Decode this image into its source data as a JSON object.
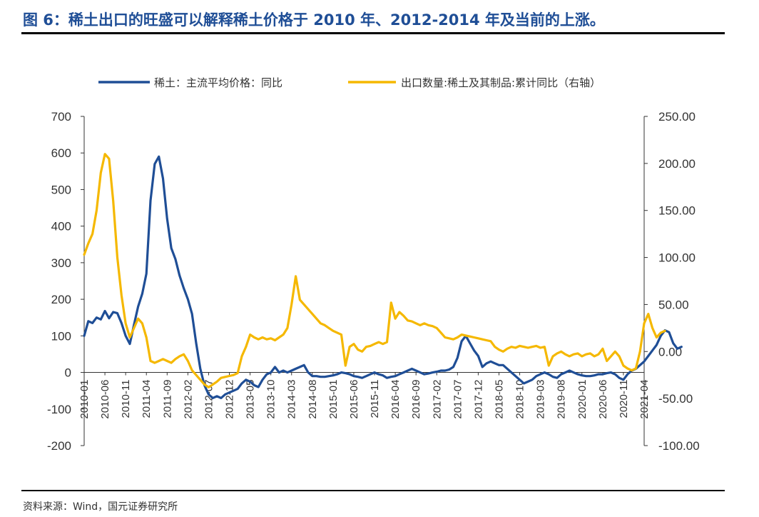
{
  "header": {
    "figure_title": "图 6：稀土出口的旺盛可以解释稀土价格于 2010 年、2012-2014 年及当前的上涨。"
  },
  "footer": {
    "source": "资料来源：Wind，国元证券研究所"
  },
  "chart_data": {
    "type": "line",
    "title": "",
    "legend_position": "top",
    "grid": false,
    "x_labels": [
      "2010-01",
      "2010-06",
      "2010-11",
      "2011-04",
      "2011-09",
      "2012-02",
      "2012-07",
      "2012-12",
      "2013-05",
      "2013-10",
      "2014-03",
      "2014-08",
      "2015-01",
      "2015-06",
      "2015-11",
      "2016-04",
      "2016-09",
      "2017-02",
      "2017-07",
      "2017-12",
      "2018-05",
      "2018-10",
      "2019-03",
      "2019-08",
      "2020-01",
      "2020-06",
      "2020-11",
      "2021-04"
    ],
    "y_left": {
      "ylim": [
        -200,
        700
      ],
      "ticks": [
        "-200",
        "-100",
        "0",
        "100",
        "200",
        "300",
        "400",
        "500",
        "600",
        "700"
      ]
    },
    "y_right": {
      "ylim": [
        -100,
        250
      ],
      "ticks": [
        "-100.00",
        "-50.00",
        "0.00",
        "50.00",
        "100.00",
        "150.00",
        "200.00",
        "250.00"
      ]
    },
    "series": [
      {
        "name": "稀土：主流平均价格：同比",
        "axis": "left",
        "color": "#1f4e96",
        "points": [
          [
            0,
            100
          ],
          [
            1,
            140
          ],
          [
            2,
            135
          ],
          [
            3,
            150
          ],
          [
            4,
            145
          ],
          [
            5,
            168
          ],
          [
            6,
            148
          ],
          [
            7,
            165
          ],
          [
            8,
            162
          ],
          [
            9,
            135
          ],
          [
            10,
            100
          ],
          [
            11,
            78
          ],
          [
            12,
            130
          ],
          [
            13,
            180
          ],
          [
            14,
            215
          ],
          [
            15,
            270
          ],
          [
            16,
            470
          ],
          [
            17,
            570
          ],
          [
            18,
            590
          ],
          [
            19,
            530
          ],
          [
            20,
            420
          ],
          [
            21,
            340
          ],
          [
            22,
            310
          ],
          [
            23,
            265
          ],
          [
            24,
            230
          ],
          [
            25,
            200
          ],
          [
            26,
            160
          ],
          [
            27,
            80
          ],
          [
            28,
            10
          ],
          [
            29,
            -35
          ],
          [
            30,
            -60
          ],
          [
            31,
            -70
          ],
          [
            32,
            -65
          ],
          [
            33,
            -70
          ],
          [
            34,
            -60
          ],
          [
            35,
            -55
          ],
          [
            36,
            -50
          ],
          [
            37,
            -45
          ],
          [
            38,
            -30
          ],
          [
            39,
            -20
          ],
          [
            40,
            -25
          ],
          [
            41,
            -35
          ],
          [
            42,
            -40
          ],
          [
            43,
            -20
          ],
          [
            44,
            -5
          ],
          [
            45,
            0
          ],
          [
            46,
            15
          ],
          [
            47,
            0
          ],
          [
            48,
            5
          ],
          [
            49,
            0
          ],
          [
            50,
            5
          ],
          [
            51,
            10
          ],
          [
            52,
            15
          ],
          [
            53,
            20
          ],
          [
            54,
            0
          ],
          [
            55,
            -10
          ],
          [
            56,
            -10
          ],
          [
            57,
            -12
          ],
          [
            58,
            -12
          ],
          [
            59,
            -10
          ],
          [
            60,
            -8
          ],
          [
            61,
            -5
          ],
          [
            62,
            0
          ],
          [
            63,
            -2
          ],
          [
            64,
            -5
          ],
          [
            65,
            -10
          ],
          [
            66,
            -12
          ],
          [
            67,
            -15
          ],
          [
            68,
            -10
          ],
          [
            69,
            -5
          ],
          [
            70,
            0
          ],
          [
            71,
            -5
          ],
          [
            72,
            -8
          ],
          [
            73,
            -15
          ],
          [
            74,
            -12
          ],
          [
            75,
            -10
          ],
          [
            76,
            -5
          ],
          [
            77,
            0
          ],
          [
            78,
            5
          ],
          [
            79,
            10
          ],
          [
            80,
            5
          ],
          [
            81,
            0
          ],
          [
            82,
            -5
          ],
          [
            83,
            -3
          ],
          [
            84,
            0
          ],
          [
            85,
            2
          ],
          [
            86,
            5
          ],
          [
            87,
            5
          ],
          [
            88,
            8
          ],
          [
            89,
            15
          ],
          [
            90,
            40
          ],
          [
            91,
            85
          ],
          [
            92,
            100
          ],
          [
            93,
            80
          ],
          [
            94,
            60
          ],
          [
            95,
            45
          ],
          [
            96,
            15
          ],
          [
            97,
            25
          ],
          [
            98,
            30
          ],
          [
            99,
            25
          ],
          [
            100,
            20
          ],
          [
            101,
            20
          ],
          [
            102,
            10
          ],
          [
            103,
            0
          ],
          [
            104,
            -10
          ],
          [
            105,
            -20
          ],
          [
            106,
            -30
          ],
          [
            107,
            -25
          ],
          [
            108,
            -20
          ],
          [
            109,
            -10
          ],
          [
            110,
            -5
          ],
          [
            111,
            0
          ],
          [
            112,
            -5
          ],
          [
            113,
            -12
          ],
          [
            114,
            -15
          ],
          [
            115,
            -5
          ],
          [
            116,
            0
          ],
          [
            117,
            5
          ],
          [
            118,
            0
          ],
          [
            119,
            -5
          ],
          [
            120,
            -8
          ],
          [
            121,
            -10
          ],
          [
            122,
            -10
          ],
          [
            123,
            -8
          ],
          [
            124,
            -5
          ],
          [
            125,
            -5
          ],
          [
            126,
            -2
          ],
          [
            127,
            0
          ],
          [
            128,
            -5
          ],
          [
            129,
            -15
          ],
          [
            130,
            -20
          ],
          [
            131,
            -5
          ],
          [
            132,
            5
          ],
          [
            133,
            10
          ],
          [
            134,
            20
          ],
          [
            135,
            30
          ],
          [
            136,
            45
          ],
          [
            137,
            60
          ],
          [
            138,
            75
          ],
          [
            139,
            100
          ],
          [
            140,
            115
          ],
          [
            141,
            110
          ],
          [
            142,
            80
          ],
          [
            143,
            65
          ],
          [
            144,
            70
          ]
        ]
      },
      {
        "name": "出口数量:稀土及其制品:累计同比（右轴）",
        "axis": "right",
        "color": "#f5b800",
        "points": [
          [
            0,
            103
          ],
          [
            1,
            115
          ],
          [
            2,
            125
          ],
          [
            3,
            150
          ],
          [
            4,
            190
          ],
          [
            5,
            210
          ],
          [
            6,
            205
          ],
          [
            7,
            160
          ],
          [
            8,
            100
          ],
          [
            9,
            60
          ],
          [
            10,
            30
          ],
          [
            11,
            15
          ],
          [
            12,
            25
          ],
          [
            13,
            35
          ],
          [
            14,
            30
          ],
          [
            15,
            15
          ],
          [
            16,
            -10
          ],
          [
            17,
            -12
          ],
          [
            18,
            -10
          ],
          [
            19,
            -8
          ],
          [
            20,
            -10
          ],
          [
            21,
            -12
          ],
          [
            22,
            -8
          ],
          [
            23,
            -5
          ],
          [
            24,
            -3
          ],
          [
            25,
            -10
          ],
          [
            26,
            -20
          ],
          [
            27,
            -25
          ],
          [
            28,
            -30
          ],
          [
            29,
            -35
          ],
          [
            30,
            -38
          ],
          [
            31,
            -35
          ],
          [
            32,
            -32
          ],
          [
            33,
            -28
          ],
          [
            34,
            -27
          ],
          [
            35,
            -26
          ],
          [
            36,
            -25
          ],
          [
            37,
            -23
          ],
          [
            38,
            -5
          ],
          [
            39,
            5
          ],
          [
            40,
            18
          ],
          [
            41,
            15
          ],
          [
            42,
            13
          ],
          [
            43,
            15
          ],
          [
            44,
            13
          ],
          [
            45,
            14
          ],
          [
            46,
            12
          ],
          [
            47,
            15
          ],
          [
            48,
            18
          ],
          [
            49,
            25
          ],
          [
            50,
            50
          ],
          [
            51,
            80
          ],
          [
            52,
            55
          ],
          [
            53,
            50
          ],
          [
            54,
            45
          ],
          [
            55,
            40
          ],
          [
            56,
            35
          ],
          [
            57,
            30
          ],
          [
            58,
            28
          ],
          [
            59,
            25
          ],
          [
            60,
            22
          ],
          [
            61,
            20
          ],
          [
            62,
            18
          ],
          [
            63,
            -15
          ],
          [
            64,
            5
          ],
          [
            65,
            8
          ],
          [
            66,
            2
          ],
          [
            67,
            0
          ],
          [
            68,
            5
          ],
          [
            69,
            6
          ],
          [
            70,
            8
          ],
          [
            71,
            10
          ],
          [
            72,
            8
          ],
          [
            73,
            10
          ],
          [
            74,
            52
          ],
          [
            75,
            35
          ],
          [
            76,
            42
          ],
          [
            77,
            38
          ],
          [
            78,
            33
          ],
          [
            79,
            32
          ],
          [
            80,
            30
          ],
          [
            81,
            28
          ],
          [
            82,
            30
          ],
          [
            83,
            28
          ],
          [
            84,
            27
          ],
          [
            85,
            25
          ],
          [
            86,
            20
          ],
          [
            87,
            15
          ],
          [
            88,
            14
          ],
          [
            89,
            13
          ],
          [
            90,
            15
          ],
          [
            91,
            18
          ],
          [
            92,
            17
          ],
          [
            93,
            16
          ],
          [
            94,
            15
          ],
          [
            95,
            14
          ],
          [
            96,
            13
          ],
          [
            97,
            12
          ],
          [
            98,
            11
          ],
          [
            99,
            5
          ],
          [
            100,
            2
          ],
          [
            101,
            0
          ],
          [
            102,
            3
          ],
          [
            103,
            5
          ],
          [
            104,
            4
          ],
          [
            105,
            6
          ],
          [
            106,
            5
          ],
          [
            107,
            4
          ],
          [
            108,
            5
          ],
          [
            109,
            6
          ],
          [
            110,
            4
          ],
          [
            111,
            5
          ],
          [
            112,
            -15
          ],
          [
            113,
            -5
          ],
          [
            114,
            -2
          ],
          [
            115,
            0
          ],
          [
            116,
            -3
          ],
          [
            117,
            -5
          ],
          [
            118,
            -3
          ],
          [
            119,
            -2
          ],
          [
            120,
            -5
          ],
          [
            121,
            -3
          ],
          [
            122,
            -2
          ],
          [
            123,
            -5
          ],
          [
            124,
            -3
          ],
          [
            125,
            3
          ],
          [
            126,
            -10
          ],
          [
            127,
            -5
          ],
          [
            128,
            0
          ],
          [
            129,
            -5
          ],
          [
            130,
            -15
          ],
          [
            131,
            -18
          ],
          [
            132,
            -20
          ],
          [
            133,
            -18
          ],
          [
            134,
            0
          ],
          [
            135,
            30
          ],
          [
            136,
            40
          ],
          [
            137,
            25
          ],
          [
            138,
            15
          ],
          [
            139,
            20
          ],
          [
            140,
            22
          ]
        ]
      }
    ]
  }
}
